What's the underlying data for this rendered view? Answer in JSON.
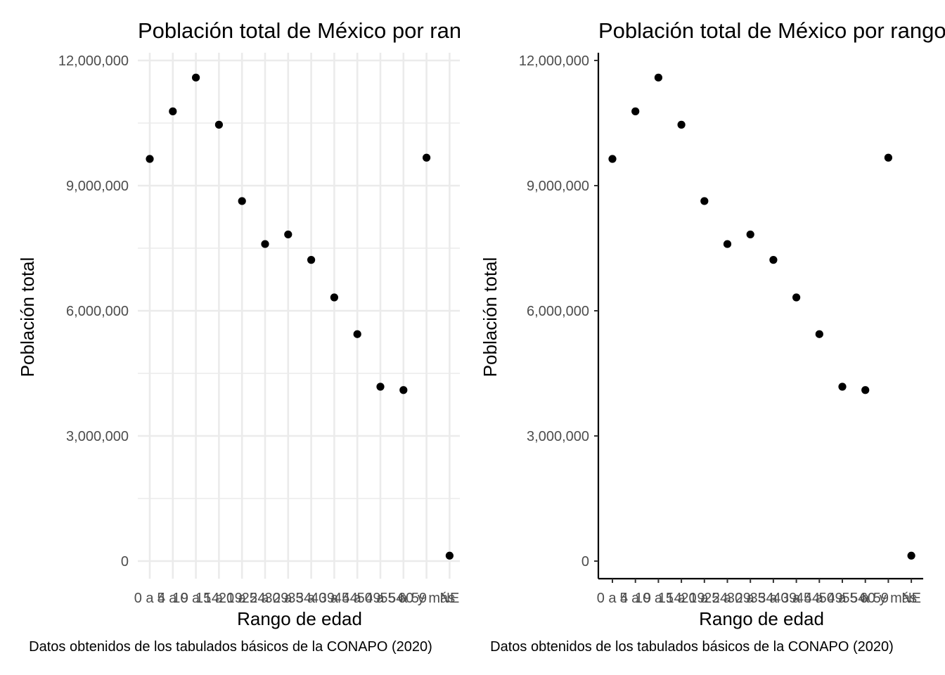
{
  "chart_data": [
    {
      "type": "scatter",
      "title": "Población total de México por rango de edad",
      "xlabel": "Rango de edad",
      "ylabel": "Población total",
      "caption": "Datos obtenidos de los tabulados básicos de la CONAPO (2020)",
      "theme": "minimal",
      "grid": true,
      "axis_lines": false,
      "categories": [
        "0 a 4",
        "5 a 9",
        "10 a 14",
        "15 a 19",
        "20 a 24",
        "25 a 29",
        "30 a 34",
        "35 a 39",
        "40 a 44",
        "45 a 49",
        "50 a 54",
        "55 a 59",
        "60 y más",
        "NE"
      ],
      "values": [
        9640000,
        10780000,
        11590000,
        10460000,
        8630000,
        7600000,
        7830000,
        7220000,
        6320000,
        5440000,
        4180000,
        4100000,
        9670000,
        130000
      ],
      "ylim": [
        0,
        12000000
      ],
      "yticks": [
        0,
        3000000,
        6000000,
        9000000,
        12000000
      ],
      "ytick_labels": [
        "0",
        "3,000,000",
        "6,000,000",
        "9,000,000",
        "12,000,000"
      ],
      "point_color": "#000000",
      "grid_color": "#ebebeb"
    },
    {
      "type": "scatter",
      "title": "Población total de México por rango de edad",
      "xlabel": "Rango de edad",
      "ylabel": "Población total",
      "caption": "Datos obtenidos de los tabulados básicos de la CONAPO (2020)",
      "theme": "classic",
      "grid": false,
      "axis_lines": true,
      "categories": [
        "0 a 4",
        "5 a 9",
        "10 a 14",
        "15 a 19",
        "20 a 24",
        "25 a 29",
        "30 a 34",
        "35 a 39",
        "40 a 44",
        "45 a 49",
        "50 a 54",
        "55 a 59",
        "60 y más",
        "NE"
      ],
      "values": [
        9640000,
        10780000,
        11590000,
        10460000,
        8630000,
        7600000,
        7830000,
        7220000,
        6320000,
        5440000,
        4180000,
        4100000,
        9670000,
        130000
      ],
      "ylim": [
        0,
        12000000
      ],
      "yticks": [
        0,
        3000000,
        6000000,
        9000000,
        12000000
      ],
      "ytick_labels": [
        "0",
        "3,000,000",
        "6,000,000",
        "9,000,000",
        "12,000,000"
      ],
      "point_color": "#000000",
      "axis_color": "#000000"
    }
  ]
}
